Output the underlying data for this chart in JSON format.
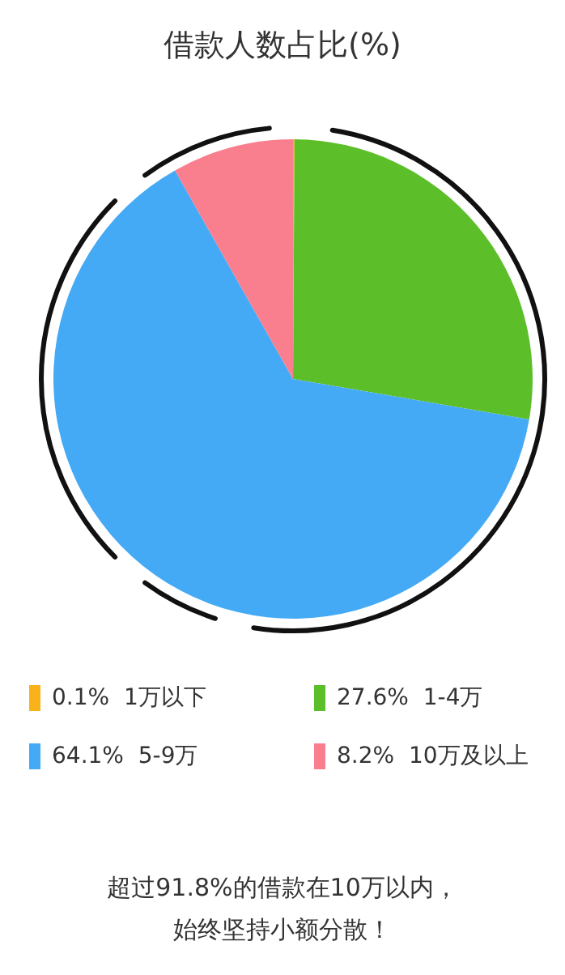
{
  "chart_data": {
    "type": "pie",
    "title": "借款人数占比(%)",
    "categories": [
      "1万以下",
      "1-4万",
      "5-9万",
      "10万及以上"
    ],
    "values": [
      0.1,
      27.6,
      64.1,
      8.2
    ],
    "colors": [
      "#f9b21a",
      "#5cbf2a",
      "#44aaf5",
      "#f97f8e"
    ],
    "value_labels": [
      "0.1%",
      "27.6%",
      "64.1%",
      "8.2%"
    ],
    "legend": "bottom",
    "annotations": [
      "超过91.8%的借款在10万以内，",
      "始终坚持小额分散！"
    ]
  }
}
